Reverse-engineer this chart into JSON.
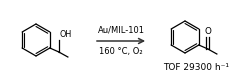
{
  "arrow_label_top": "Au/MIL-101",
  "arrow_label_bottom": "160 °C, O₂",
  "tof_label": "TOF 29300 h⁻¹",
  "background_color": "#ffffff",
  "text_color": "#000000",
  "arrow_color": "#333333",
  "font_size_arrow": 6.0,
  "font_size_tof": 6.5,
  "font_size_atom": 5.8,
  "fig_width": 2.4,
  "fig_height": 0.83,
  "dpi": 100
}
